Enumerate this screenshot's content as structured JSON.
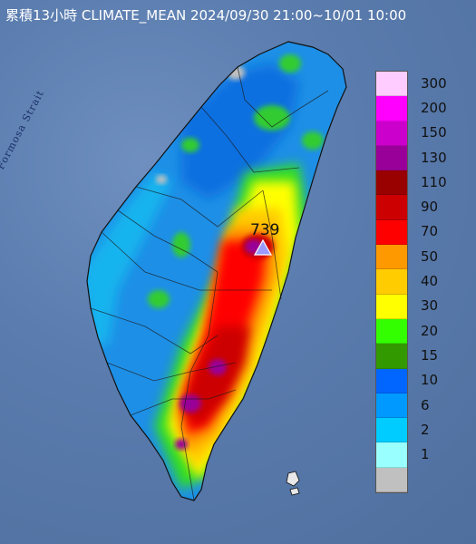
{
  "title": "累積13小時 CLIMATE_MEAN 2024/09/30 21:00~10/01 10:00",
  "strait_label": "Formosa Strait",
  "max_marker": {
    "value_label": "739",
    "icon": "triangle-marker-icon"
  },
  "legend": {
    "levels": [
      {
        "label": "300",
        "color": "#ffccff"
      },
      {
        "label": "200",
        "color": "#ff00ff"
      },
      {
        "label": "150",
        "color": "#cc00cc"
      },
      {
        "label": "130",
        "color": "#990099"
      },
      {
        "label": "110",
        "color": "#990000"
      },
      {
        "label": "90",
        "color": "#cc0000"
      },
      {
        "label": "70",
        "color": "#ff0000"
      },
      {
        "label": "50",
        "color": "#ff9900"
      },
      {
        "label": "40",
        "color": "#ffcc00"
      },
      {
        "label": "30",
        "color": "#ffff00"
      },
      {
        "label": "20",
        "color": "#33ff00"
      },
      {
        "label": "15",
        "color": "#339900"
      },
      {
        "label": "10",
        "color": "#0066ff"
      },
      {
        "label": "6",
        "color": "#0099ff"
      },
      {
        "label": "2",
        "color": "#00ccff"
      },
      {
        "label": "1",
        "color": "#99ffff"
      },
      {
        "label": "",
        "color": "#c0c0c0"
      }
    ]
  }
}
